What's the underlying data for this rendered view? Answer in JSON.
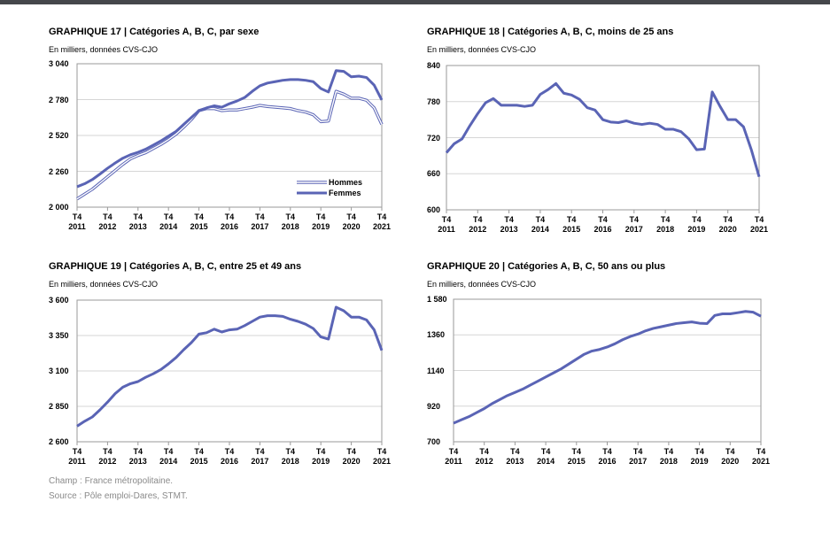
{
  "chart_data": [
    {
      "type": "line",
      "title": "GRAPHIQUE 17 | Catégories A, B, C, par sexe",
      "subtitle": "En milliers, données CVS-CJO",
      "categories": [
        "T4\n2011",
        null,
        null,
        null,
        "T4\n2012",
        null,
        null,
        null,
        "T4\n2013",
        null,
        null,
        null,
        "T4\n2014",
        null,
        null,
        null,
        "T4\n2015",
        null,
        null,
        null,
        "T4\n2016",
        null,
        null,
        null,
        "T4\n2017",
        null,
        null,
        null,
        "T4\n2018",
        null,
        null,
        null,
        "T4\n2019",
        null,
        null,
        null,
        "T4\n2020",
        null,
        null,
        null,
        "T4\n2021"
      ],
      "series": [
        {
          "name": "Hommes",
          "color": "#5a64b5",
          "line_style": "hollow",
          "values": [
            2060,
            2095,
            2130,
            2175,
            2220,
            2265,
            2310,
            2350,
            2375,
            2395,
            2425,
            2455,
            2490,
            2530,
            2580,
            2635,
            2700,
            2715,
            2715,
            2700,
            2705,
            2705,
            2715,
            2725,
            2738,
            2730,
            2725,
            2720,
            2715,
            2700,
            2690,
            2670,
            2620,
            2625,
            2840,
            2820,
            2790,
            2790,
            2775,
            2720,
            2600
          ]
        },
        {
          "name": "Femmes",
          "color": "#5a64b5",
          "line_style": "solid",
          "values": [
            2148,
            2170,
            2200,
            2240,
            2282,
            2320,
            2355,
            2380,
            2398,
            2420,
            2450,
            2480,
            2515,
            2550,
            2600,
            2650,
            2700,
            2720,
            2735,
            2725,
            2750,
            2770,
            2795,
            2840,
            2880,
            2900,
            2910,
            2920,
            2925,
            2925,
            2920,
            2910,
            2860,
            2835,
            2990,
            2985,
            2945,
            2950,
            2940,
            2885,
            2777
          ]
        }
      ],
      "ylim": [
        2000,
        3040
      ],
      "yticks": [
        {
          "value": 2000,
          "label": "2 000"
        },
        {
          "value": 2260,
          "label": "2 260"
        },
        {
          "value": 2520,
          "label": "2 520"
        },
        {
          "value": 2780,
          "label": "2 780"
        },
        {
          "value": 3040,
          "label": "3 040"
        }
      ],
      "grid": true,
      "legend": "lower right"
    },
    {
      "type": "line",
      "title": "GRAPHIQUE 18 | Catégories A, B, C, moins de 25 ans",
      "subtitle": "En milliers, données CVS-CJO",
      "categories": [
        "T4\n2011",
        null,
        null,
        null,
        "T4\n2012",
        null,
        null,
        null,
        "T4\n2013",
        null,
        null,
        null,
        "T4\n2014",
        null,
        null,
        null,
        "T4\n2015",
        null,
        null,
        null,
        "T4\n2016",
        null,
        null,
        null,
        "T4\n2017",
        null,
        null,
        null,
        "T4\n2018",
        null,
        null,
        null,
        "T4\n2019",
        null,
        null,
        null,
        "T4\n2020",
        null,
        null,
        null,
        "T4\n2021"
      ],
      "values": [
        695,
        710,
        718,
        740,
        760,
        778,
        785,
        774,
        774,
        774,
        772,
        774,
        792,
        800,
        810,
        794,
        791,
        784,
        770,
        766,
        750,
        746,
        745,
        748,
        744,
        742,
        744,
        742,
        734,
        734,
        730,
        718,
        700,
        701,
        796,
        772,
        750,
        750,
        738,
        700,
        655
      ],
      "color": "#5a64b5",
      "ylim": [
        600,
        840
      ],
      "yticks": [
        600,
        660,
        720,
        780,
        840
      ],
      "grid": true
    },
    {
      "type": "line",
      "title": "GRAPHIQUE 19 | Catégories A, B, C, entre 25 et 49 ans",
      "subtitle": "En milliers, données CVS-CJO",
      "categories": [
        "T4\n2011",
        null,
        null,
        null,
        "T4\n2012",
        null,
        null,
        null,
        "T4\n2013",
        null,
        null,
        null,
        "T4\n2014",
        null,
        null,
        null,
        "T4\n2015",
        null,
        null,
        null,
        "T4\n2016",
        null,
        null,
        null,
        "T4\n2017",
        null,
        null,
        null,
        "T4\n2018",
        null,
        null,
        null,
        "T4\n2019",
        null,
        null,
        null,
        "T4\n2020",
        null,
        null,
        null,
        "T4\n2021"
      ],
      "values": [
        2710,
        2745,
        2775,
        2825,
        2880,
        2940,
        2985,
        3010,
        3025,
        3055,
        3080,
        3110,
        3150,
        3195,
        3250,
        3300,
        3360,
        3370,
        3395,
        3375,
        3390,
        3395,
        3420,
        3450,
        3480,
        3490,
        3490,
        3485,
        3465,
        3450,
        3430,
        3400,
        3340,
        3325,
        3550,
        3525,
        3480,
        3480,
        3460,
        3390,
        3245
      ],
      "color": "#5a64b5",
      "ylim": [
        2600,
        3600
      ],
      "yticks": [
        {
          "value": 2600,
          "label": "2 600"
        },
        {
          "value": 2850,
          "label": "2 850"
        },
        {
          "value": 3100,
          "label": "3 100"
        },
        {
          "value": 3350,
          "label": "3 350"
        },
        {
          "value": 3600,
          "label": "3 600"
        }
      ],
      "grid": true
    },
    {
      "type": "line",
      "title": "GRAPHIQUE 20 | Catégories A, B, C, 50 ans ou plus",
      "subtitle": "En milliers, données CVS-CJO",
      "categories": [
        "T4\n2011",
        null,
        null,
        null,
        "T4\n2012",
        null,
        null,
        null,
        "T4\n2013",
        null,
        null,
        null,
        "T4\n2014",
        null,
        null,
        null,
        "T4\n2015",
        null,
        null,
        null,
        "T4\n2016",
        null,
        null,
        null,
        "T4\n2017",
        null,
        null,
        null,
        "T4\n2018",
        null,
        null,
        null,
        "T4\n2019",
        null,
        null,
        null,
        "T4\n2020",
        null,
        null,
        null,
        "T4\n2021"
      ],
      "values": [
        815,
        835,
        855,
        880,
        905,
        935,
        960,
        985,
        1005,
        1025,
        1050,
        1075,
        1100,
        1125,
        1150,
        1180,
        1210,
        1240,
        1260,
        1270,
        1285,
        1305,
        1330,
        1350,
        1365,
        1385,
        1400,
        1410,
        1420,
        1430,
        1435,
        1440,
        1432,
        1430,
        1480,
        1490,
        1490,
        1497,
        1505,
        1500,
        1475
      ],
      "color": "#5a64b5",
      "ylim": [
        700,
        1580
      ],
      "yticks": [
        700,
        920,
        1140,
        1360,
        {
          "value": 1580,
          "label": "1 580"
        }
      ],
      "grid": true
    }
  ],
  "notes": [
    "Champ : France métropolitaine.",
    "Source : Pôle emploi-Dares, STMT."
  ]
}
